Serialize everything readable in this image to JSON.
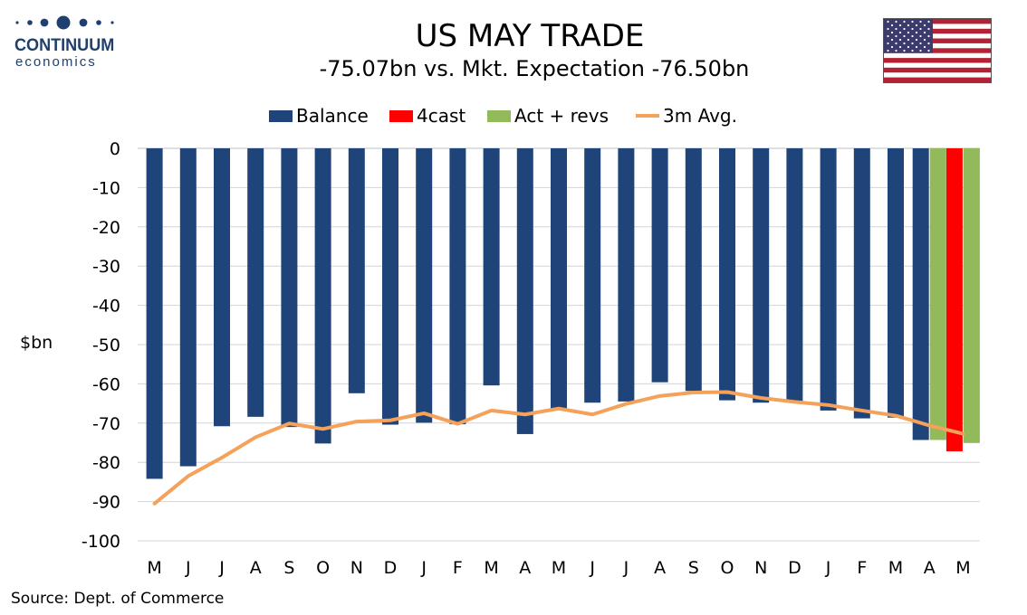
{
  "logo": {
    "name": "CONTINUUM",
    "sub": "economics"
  },
  "header": {
    "title": "US MAY TRADE",
    "subtitle": "-75.07bn vs. Mkt. Expectation -76.50bn"
  },
  "flag": "us-flag-icon",
  "source": "Source: Dept. of Commerce",
  "colors": {
    "balance": "#1f4479",
    "forecast": "#ff0000",
    "actual": "#92b95a",
    "avg": "#f4a15a"
  },
  "chart_data": {
    "type": "bar",
    "ylabel": "$bn",
    "ylim": [
      -100,
      0
    ],
    "yticks": [
      0,
      -10,
      -20,
      -30,
      -40,
      -50,
      -60,
      -70,
      -80,
      -90,
      -100
    ],
    "grid": true,
    "legend_position": "top",
    "categories": [
      "M",
      "J",
      "J",
      "A",
      "S",
      "O",
      "N",
      "D",
      "J",
      "F",
      "M",
      "A",
      "M",
      "J",
      "J",
      "A",
      "S",
      "O",
      "N",
      "D",
      "J",
      "F",
      "M",
      "A",
      "M"
    ],
    "series": [
      {
        "name": "Balance",
        "type": "bar",
        "values": [
          -84.2,
          -81.0,
          -70.8,
          -68.4,
          -71.0,
          -75.2,
          -62.4,
          -70.4,
          -69.9,
          -70.3,
          -60.4,
          -72.8,
          -66.3,
          -64.8,
          -64.5,
          -59.6,
          -61.8,
          -64.2,
          -64.8,
          -64.6,
          -66.8,
          -68.8,
          -68.6,
          -74.3,
          null
        ]
      },
      {
        "name": "4cast",
        "type": "bar",
        "values": [
          null,
          null,
          null,
          null,
          null,
          null,
          null,
          null,
          null,
          null,
          null,
          null,
          null,
          null,
          null,
          null,
          null,
          null,
          null,
          null,
          null,
          null,
          null,
          null,
          -77.2
        ]
      },
      {
        "name": "Act + revs",
        "type": "bar",
        "values": [
          null,
          null,
          null,
          null,
          null,
          null,
          null,
          null,
          null,
          null,
          null,
          null,
          null,
          null,
          null,
          null,
          null,
          null,
          null,
          null,
          null,
          null,
          null,
          -74.3,
          -75.07
        ]
      },
      {
        "name": "3m Avg.",
        "type": "line",
        "values": [
          -90.5,
          -83.5,
          -78.8,
          -73.6,
          -70.1,
          -71.5,
          -69.6,
          -69.3,
          -67.5,
          -70.2,
          -66.8,
          -67.8,
          -66.3,
          -67.8,
          -65.1,
          -63.1,
          -62.2,
          -62.1,
          -63.6,
          -64.6,
          -65.4,
          -66.8,
          -68.1,
          -70.6,
          -72.7
        ]
      }
    ]
  }
}
